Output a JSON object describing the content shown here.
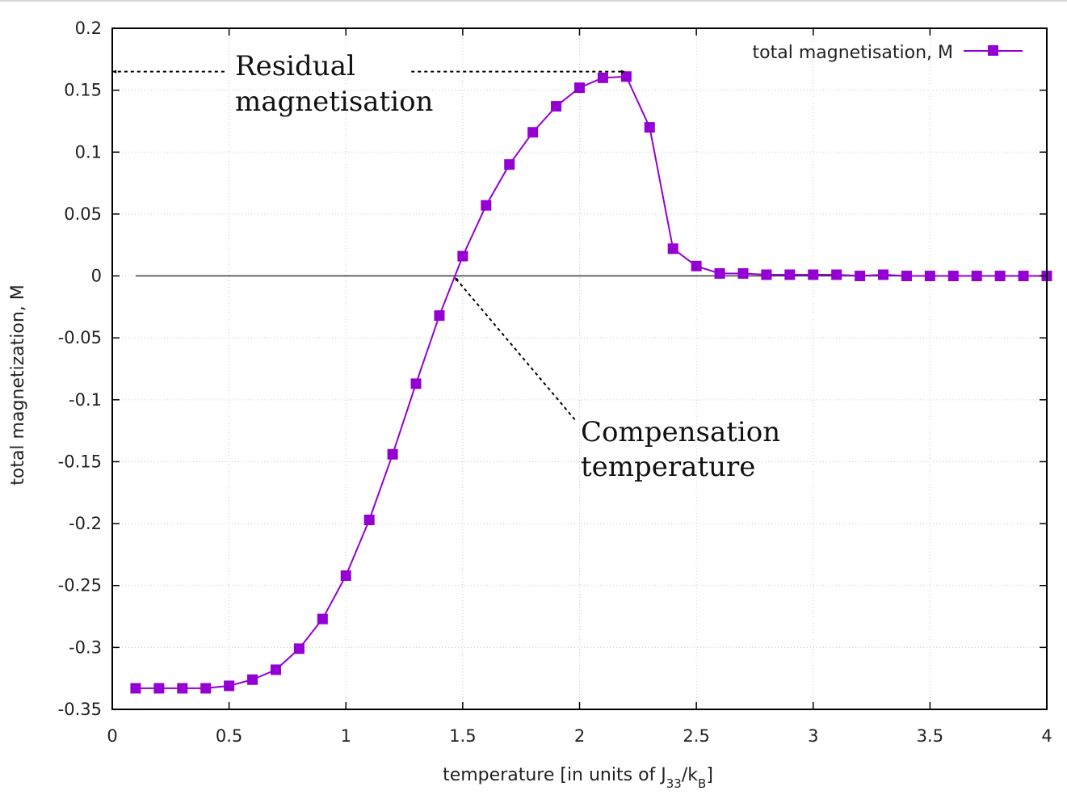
{
  "chart_data": {
    "type": "line",
    "xlabel": "temperature [in units of J",
    "xlabel_sub1": "33",
    "xlabel_mid": "/k",
    "xlabel_sub2": "B",
    "xlabel_end": "]",
    "ylabel": "total magnetization, M",
    "xlim": [
      0,
      4
    ],
    "ylim": [
      -0.35,
      0.2
    ],
    "grid": true,
    "legend_position": "top-right",
    "x_ticks": [
      0,
      0.5,
      1,
      1.5,
      2,
      2.5,
      3,
      3.5,
      4
    ],
    "x_tick_labels": [
      "0",
      "0.5",
      "1",
      "1.5",
      "2",
      "2.5",
      "3",
      "3.5",
      "4"
    ],
    "y_ticks": [
      0.2,
      0.15,
      0.1,
      0.05,
      0,
      -0.05,
      -0.1,
      -0.15,
      -0.2,
      -0.25,
      -0.3,
      -0.35
    ],
    "y_tick_labels": [
      "0.2",
      "0.15",
      "0.1",
      "0.05",
      "0",
      "-0.05",
      "-0.1",
      "-0.15",
      "-0.2",
      "-0.25",
      "-0.3",
      "-0.35"
    ],
    "reference_line_y": 0,
    "series": [
      {
        "name": "total magnetisation, M",
        "color": "#9400d3",
        "marker": "square",
        "x": [
          0.1,
          0.2,
          0.3,
          0.4,
          0.5,
          0.6,
          0.7,
          0.8,
          0.9,
          1.0,
          1.1,
          1.2,
          1.3,
          1.4,
          1.5,
          1.6,
          1.7,
          1.8,
          1.9,
          2.0,
          2.1,
          2.2,
          2.3,
          2.4,
          2.5,
          2.6,
          2.7,
          2.8,
          2.9,
          3.0,
          3.1,
          3.2,
          3.3,
          3.4,
          3.5,
          3.6,
          3.7,
          3.8,
          3.9,
          4.0
        ],
        "values": [
          -0.333,
          -0.333,
          -0.333,
          -0.333,
          -0.331,
          -0.326,
          -0.318,
          -0.301,
          -0.277,
          -0.242,
          -0.197,
          -0.144,
          -0.087,
          -0.032,
          0.016,
          0.057,
          0.09,
          0.116,
          0.137,
          0.152,
          0.16,
          0.161,
          0.12,
          0.022,
          0.008,
          0.002,
          0.002,
          0.001,
          0.001,
          0.001,
          0.001,
          0.0,
          0.001,
          0.0,
          0.0,
          0.0,
          0.0,
          0.0,
          0.0,
          0.0
        ]
      }
    ],
    "annotations": [
      {
        "id": "residual",
        "lines": [
          "Residual",
          "magnetisation"
        ],
        "arrow_left_tip": [
          0.0,
          0.165
        ],
        "arrow_left_tail": [
          0.48,
          0.165
        ],
        "arrow_right_tail": [
          1.28,
          0.165
        ],
        "arrow_right_tip": [
          2.2,
          0.165
        ]
      },
      {
        "id": "compensation",
        "lines": [
          "Compensation",
          "temperature"
        ],
        "arrow_tip": [
          1.46,
          0.0
        ],
        "arrow_tail": [
          1.98,
          -0.116
        ]
      }
    ]
  }
}
